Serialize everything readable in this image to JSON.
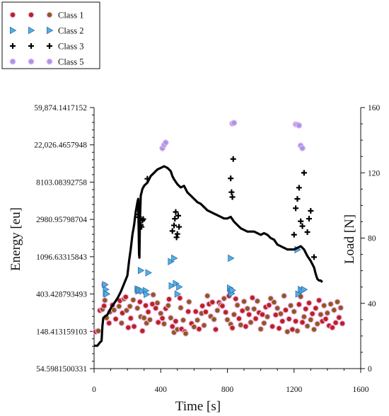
{
  "chart_data": {
    "type": "scatter",
    "title": "",
    "xlabel": "Time [s]",
    "ylabel_left": "Energy [eu]",
    "ylabel_right": "Load [N]",
    "xlim": [
      0,
      1600
    ],
    "x_ticks": [
      0,
      400,
      800,
      1200,
      1600
    ],
    "ylim_left_ln": [
      4,
      11
    ],
    "y_left_scale": "natural-log (e^4 … e^11)",
    "y_left_ticks": [
      "54.5981500331",
      "148.413159103",
      "403.428793493",
      "1096.63315843",
      "2980.95798704",
      "8103.08392758",
      "22,026.4657948",
      "59,874.1417152"
    ],
    "ylim_right": [
      0,
      160
    ],
    "y_right_ticks": [
      0,
      40,
      80,
      120,
      160
    ],
    "grid": false,
    "legend_position": "top-left",
    "legend": [
      {
        "label": "Class 1",
        "marker": "circle",
        "fill": "#b8231b",
        "alt_fill": "#8b5a1c"
      },
      {
        "label": "Class 2",
        "marker": "triangle-right",
        "fill": "#4fb1e6"
      },
      {
        "label": "Class 3",
        "marker": "plus",
        "fill": "#000000"
      },
      {
        "label": "Class 5",
        "marker": "circle",
        "fill": "#9e9ae8"
      }
    ],
    "series": [
      {
        "name": "Class 1",
        "axis": "left",
        "points": [
          [
            10,
            4.99
          ],
          [
            25,
            5.01
          ],
          [
            35,
            5.56
          ],
          [
            50,
            5.59
          ],
          [
            60,
            5.68
          ],
          [
            65,
            5.83
          ],
          [
            60,
            6.25
          ],
          [
            75,
            5.36
          ],
          [
            90,
            5.22
          ],
          [
            95,
            5.52
          ],
          [
            110,
            5.7
          ],
          [
            120,
            5.57
          ],
          [
            130,
            5.33
          ],
          [
            150,
            5.67
          ],
          [
            155,
            5.82
          ],
          [
            165,
            5.22
          ],
          [
            170,
            5.49
          ],
          [
            180,
            5.87
          ],
          [
            190,
            5.92
          ],
          [
            195,
            5.56
          ],
          [
            205,
            5.1
          ],
          [
            215,
            5.67
          ],
          [
            220,
            5.35
          ],
          [
            235,
            5.84
          ],
          [
            240,
            5.13
          ],
          [
            260,
            5.62
          ],
          [
            275,
            5.79
          ],
          [
            280,
            5.39
          ],
          [
            290,
            5.01
          ],
          [
            300,
            5.36
          ],
          [
            310,
            5.69
          ],
          [
            315,
            5.22
          ],
          [
            325,
            5.52
          ],
          [
            335,
            5.31
          ],
          [
            350,
            5.73
          ],
          [
            355,
            5.98
          ],
          [
            370,
            5.62
          ],
          [
            380,
            5.76
          ],
          [
            385,
            5.24
          ],
          [
            400,
            5.48
          ],
          [
            410,
            5.35
          ],
          [
            420,
            5.2
          ],
          [
            430,
            5.61
          ],
          [
            445,
            5.69
          ],
          [
            450,
            5.86
          ],
          [
            460,
            5.36
          ],
          [
            470,
            5.13
          ],
          [
            480,
            4.97
          ],
          [
            490,
            5.27
          ],
          [
            500,
            5.05
          ],
          [
            515,
            5.89
          ],
          [
            520,
            5.63
          ],
          [
            525,
            5.06
          ],
          [
            535,
            5.3
          ],
          [
            545,
            4.99
          ],
          [
            550,
            4.94
          ],
          [
            565,
            5.53
          ],
          [
            570,
            5.79
          ],
          [
            585,
            5.21
          ],
          [
            600,
            5.12
          ],
          [
            610,
            5.53
          ],
          [
            620,
            5.3
          ],
          [
            630,
            5.06
          ],
          [
            645,
            5.48
          ],
          [
            650,
            5.68
          ],
          [
            660,
            5.16
          ],
          [
            670,
            5.52
          ],
          [
            680,
            5.95
          ],
          [
            690,
            5.73
          ],
          [
            700,
            5.4
          ],
          [
            710,
            5.78
          ],
          [
            720,
            5.32
          ],
          [
            730,
            5.05
          ],
          [
            740,
            5.56
          ],
          [
            750,
            5.77
          ],
          [
            760,
            5.71
          ],
          [
            770,
            5.68
          ],
          [
            780,
            5.88
          ],
          [
            790,
            5.51
          ],
          [
            800,
            5.31
          ],
          [
            810,
            5.95
          ],
          [
            820,
            5.19
          ],
          [
            830,
            5.09
          ],
          [
            840,
            5.45
          ],
          [
            850,
            5.87
          ],
          [
            860,
            5.7
          ],
          [
            870,
            5.34
          ],
          [
            880,
            5.17
          ],
          [
            890,
            5.55
          ],
          [
            900,
            5.8
          ],
          [
            910,
            5.13
          ],
          [
            920,
            5.61
          ],
          [
            930,
            5.45
          ],
          [
            940,
            5.24
          ],
          [
            950,
            5.9
          ],
          [
            960,
            5.6
          ],
          [
            970,
            5.34
          ],
          [
            980,
            5.81
          ],
          [
            990,
            5.5
          ],
          [
            1000,
            5.06
          ],
          [
            1010,
            5.45
          ],
          [
            1020,
            5.22
          ],
          [
            1030,
            5.65
          ],
          [
            1040,
            5.39
          ],
          [
            1050,
            5.7
          ],
          [
            1060,
            5.88
          ],
          [
            1070,
            5.13
          ],
          [
            1080,
            5.78
          ],
          [
            1090,
            5.44
          ],
          [
            1100,
            5.62
          ],
          [
            1110,
            5.08
          ],
          [
            1120,
            5.47
          ],
          [
            1130,
            5.27
          ],
          [
            1140,
            5.95
          ],
          [
            1150,
            5.57
          ],
          [
            1160,
            4.99
          ],
          [
            1170,
            5.33
          ],
          [
            1180,
            5.69
          ],
          [
            1190,
            5.05
          ],
          [
            1200,
            5.53
          ],
          [
            1210,
            5.27
          ],
          [
            1220,
            5.01
          ],
          [
            1230,
            5.72
          ],
          [
            1240,
            5.93
          ],
          [
            1250,
            5.24
          ],
          [
            1260,
            5.39
          ],
          [
            1270,
            5.6
          ],
          [
            1280,
            5.14
          ],
          [
            1290,
            5.76
          ],
          [
            1300,
            5.31
          ],
          [
            1310,
            5.47
          ],
          [
            1320,
            5.05
          ],
          [
            1330,
            5.62
          ],
          [
            1340,
            5.2
          ],
          [
            1350,
            5.83
          ],
          [
            1360,
            5.45
          ],
          [
            1370,
            5.27
          ],
          [
            1380,
            5.69
          ],
          [
            1390,
            5.33
          ],
          [
            1400,
            5.49
          ],
          [
            1410,
            5.15
          ],
          [
            1420,
            5.73
          ],
          [
            1430,
            5.1
          ],
          [
            1440,
            5.57
          ],
          [
            1450,
            5.23
          ],
          [
            1460,
            5.79
          ],
          [
            1470,
            5.37
          ],
          [
            1480,
            5.63
          ],
          [
            1490,
            5.21
          ]
        ]
      },
      {
        "name": "Class 2",
        "axis": "left",
        "points": [
          [
            65,
            6.25
          ],
          [
            70,
            6.12
          ],
          [
            70,
            6.02
          ],
          [
            75,
            6.0
          ],
          [
            280,
            6.63
          ],
          [
            260,
            6.13
          ],
          [
            265,
            6.08
          ],
          [
            270,
            6.12
          ],
          [
            280,
            6.1
          ],
          [
            290,
            6.08
          ],
          [
            310,
            6.09
          ],
          [
            315,
            5.99
          ],
          [
            325,
            6.57
          ],
          [
            460,
            6.87
          ],
          [
            465,
            6.22
          ],
          [
            480,
            6.96
          ],
          [
            490,
            6.28
          ],
          [
            500,
            6.0
          ],
          [
            510,
            6.19
          ],
          [
            820,
            6.96
          ],
          [
            815,
            6.16
          ],
          [
            820,
            6.06
          ],
          [
            825,
            6.01
          ],
          [
            830,
            6.1
          ],
          [
            1220,
            7.19
          ],
          [
            1225,
            6.0
          ],
          [
            1240,
            6.12
          ],
          [
            1250,
            6.09
          ],
          [
            1260,
            6.12
          ]
        ]
      },
      {
        "name": "Class 3",
        "axis": "left",
        "points": [
          [
            265,
            8.13
          ],
          [
            270,
            8.06
          ],
          [
            280,
            7.85
          ],
          [
            285,
            7.8
          ],
          [
            290,
            7.97
          ],
          [
            295,
            8.01
          ],
          [
            320,
            9.09
          ],
          [
            470,
            7.69
          ],
          [
            480,
            7.84
          ],
          [
            485,
            8.02
          ],
          [
            490,
            8.2
          ],
          [
            495,
            7.52
          ],
          [
            500,
            7.61
          ],
          [
            505,
            8.1
          ],
          [
            510,
            7.8
          ],
          [
            820,
            9.1
          ],
          [
            825,
            8.73
          ],
          [
            830,
            8.6
          ],
          [
            835,
            9.62
          ],
          [
            1200,
            7.59
          ],
          [
            1210,
            8.3
          ],
          [
            1220,
            8.55
          ],
          [
            1230,
            8.85
          ],
          [
            1240,
            7.95
          ],
          [
            1250,
            7.82
          ],
          [
            1260,
            9.25
          ],
          [
            1280,
            7.66
          ],
          [
            1290,
            8.02
          ],
          [
            1300,
            8.23
          ],
          [
            1320,
            6.99
          ]
        ]
      },
      {
        "name": "Class 5",
        "axis": "left",
        "points": [
          [
            410,
            9.91
          ],
          [
            420,
            10.0
          ],
          [
            430,
            10.06
          ],
          [
            830,
            10.57
          ],
          [
            840,
            10.59
          ],
          [
            1210,
            10.55
          ],
          [
            1220,
            10.54
          ],
          [
            1230,
            10.52
          ],
          [
            1240,
            9.98
          ],
          [
            1250,
            9.91
          ]
        ]
      },
      {
        "name": "Load",
        "axis": "right",
        "line": [
          [
            0,
            14
          ],
          [
            20,
            14
          ],
          [
            35,
            16
          ],
          [
            45,
            17
          ],
          [
            50,
            26
          ],
          [
            55,
            31
          ],
          [
            65,
            32
          ],
          [
            80,
            33
          ],
          [
            100,
            37
          ],
          [
            120,
            40
          ],
          [
            140,
            43
          ],
          [
            160,
            47
          ],
          [
            180,
            52
          ],
          [
            200,
            57
          ],
          [
            210,
            66
          ],
          [
            220,
            73
          ],
          [
            230,
            82
          ],
          [
            240,
            88
          ],
          [
            250,
            96
          ],
          [
            260,
            102
          ],
          [
            265,
            104
          ],
          [
            270,
            70
          ],
          [
            272,
            68
          ],
          [
            275,
            90
          ],
          [
            280,
            106
          ],
          [
            285,
            108
          ],
          [
            290,
            110
          ],
          [
            300,
            112
          ],
          [
            320,
            114
          ],
          [
            340,
            118
          ],
          [
            360,
            120
          ],
          [
            380,
            122
          ],
          [
            400,
            123
          ],
          [
            420,
            124
          ],
          [
            440,
            123
          ],
          [
            460,
            121
          ],
          [
            470,
            118
          ],
          [
            480,
            116
          ],
          [
            500,
            113
          ],
          [
            520,
            111
          ],
          [
            540,
            112
          ],
          [
            560,
            108
          ],
          [
            580,
            106
          ],
          [
            600,
            104
          ],
          [
            620,
            102
          ],
          [
            640,
            101
          ],
          [
            660,
            99
          ],
          [
            680,
            97
          ],
          [
            700,
            96
          ],
          [
            720,
            95
          ],
          [
            740,
            94
          ],
          [
            760,
            93
          ],
          [
            780,
            92
          ],
          [
            800,
            92
          ],
          [
            820,
            93
          ],
          [
            840,
            90
          ],
          [
            860,
            88
          ],
          [
            880,
            86
          ],
          [
            900,
            85
          ],
          [
            920,
            84
          ],
          [
            940,
            84
          ],
          [
            960,
            84
          ],
          [
            980,
            83
          ],
          [
            1000,
            82
          ],
          [
            1020,
            83
          ],
          [
            1040,
            82
          ],
          [
            1060,
            80
          ],
          [
            1080,
            79
          ],
          [
            1100,
            76
          ],
          [
            1120,
            75
          ],
          [
            1140,
            74
          ],
          [
            1160,
            73
          ],
          [
            1180,
            73
          ],
          [
            1200,
            73
          ],
          [
            1220,
            74
          ],
          [
            1240,
            75
          ],
          [
            1260,
            73
          ],
          [
            1280,
            69
          ],
          [
            1300,
            66
          ],
          [
            1320,
            62
          ],
          [
            1330,
            58
          ],
          [
            1340,
            55
          ],
          [
            1350,
            54
          ],
          [
            1360,
            54
          ],
          [
            1370,
            53
          ]
        ]
      }
    ]
  }
}
